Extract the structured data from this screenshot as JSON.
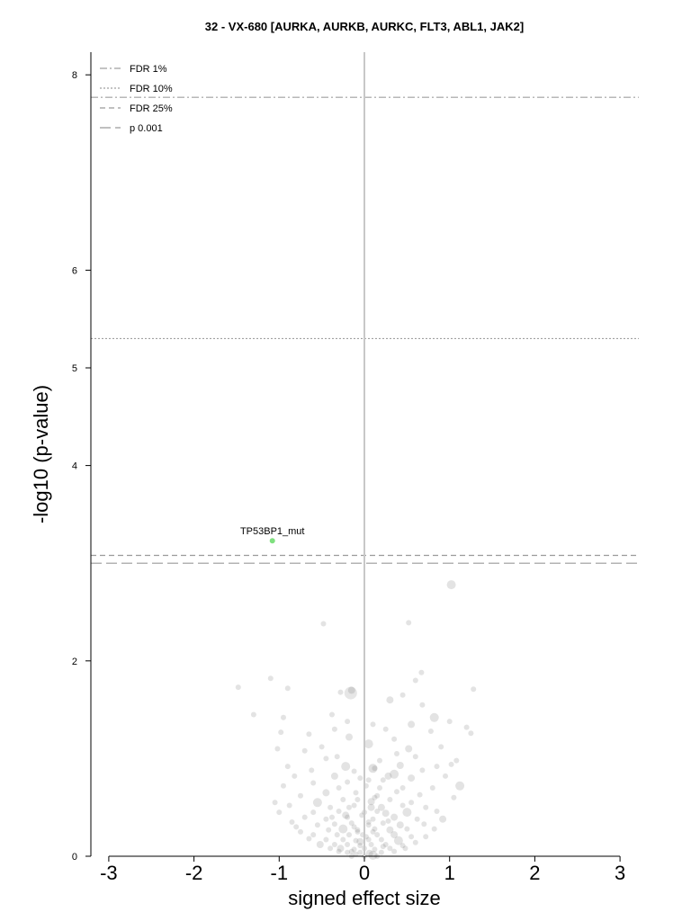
{
  "chart_data": {
    "type": "scatter",
    "title": "32 - VX-680 [AURKA, AURKB, AURKC, FLT3, ABL1, JAK2]",
    "xlabel": "signed effect size",
    "ylabel": "-log10 (p-value)",
    "xlim": [
      -3.2,
      3.2
    ],
    "ylim": [
      0,
      8.25
    ],
    "x_ticks": [
      "-3",
      "-2",
      "-1",
      "0",
      "1",
      "2",
      "3"
    ],
    "y_ticks": [
      "0",
      "2",
      "4",
      "5",
      "6",
      "8"
    ],
    "thresholds": [
      {
        "name": "FDR 1%",
        "y": 7.77,
        "style": "dashdot"
      },
      {
        "name": "FDR 10%",
        "y": 5.3,
        "style": "dotted"
      },
      {
        "name": "FDR 25%",
        "y": 3.08,
        "style": "dashed"
      },
      {
        "name": "p 0.001",
        "y": 3.0,
        "style": "longdash"
      }
    ],
    "legend": {
      "placement": "top-left",
      "entries": [
        "FDR 1%",
        "FDR 10%",
        "FDR 25%",
        "p 0.001"
      ]
    },
    "highlight": {
      "label": "TP53BP1_mut",
      "x": -1.08,
      "y": 3.23,
      "color": "#7fe07f"
    },
    "points": [
      [
        1.02,
        2.78
      ],
      [
        0.52,
        2.39
      ],
      [
        -0.48,
        2.38
      ],
      [
        -1.48,
        1.73
      ],
      [
        -1.1,
        1.82
      ],
      [
        -0.9,
        1.72
      ],
      [
        -0.28,
        1.68
      ],
      [
        -0.15,
        1.7
      ],
      [
        0.67,
        1.88
      ],
      [
        0.6,
        1.8
      ],
      [
        1.28,
        1.71
      ],
      [
        0.45,
        1.65
      ],
      [
        -1.3,
        1.45
      ],
      [
        0.68,
        1.55
      ],
      [
        0.3,
        1.6
      ],
      [
        -0.38,
        1.45
      ],
      [
        -0.95,
        1.42
      ],
      [
        0.82,
        1.42
      ],
      [
        -0.2,
        1.38
      ],
      [
        -0.35,
        1.3
      ],
      [
        0.1,
        1.35
      ],
      [
        0.55,
        1.35
      ],
      [
        1.0,
        1.38
      ],
      [
        1.2,
        1.32
      ],
      [
        -0.98,
        1.27
      ],
      [
        -0.65,
        1.25
      ],
      [
        0.25,
        1.3
      ],
      [
        0.78,
        1.28
      ],
      [
        -0.18,
        1.22
      ],
      [
        0.35,
        1.2
      ],
      [
        1.25,
        1.26
      ],
      [
        -1.02,
        1.1
      ],
      [
        -0.7,
        1.08
      ],
      [
        -0.5,
        1.12
      ],
      [
        0.05,
        1.15
      ],
      [
        0.52,
        1.1
      ],
      [
        0.9,
        1.12
      ],
      [
        -0.45,
        1.0
      ],
      [
        0.18,
        0.98
      ],
      [
        0.6,
        1.02
      ],
      [
        1.08,
        0.98
      ],
      [
        -0.9,
        0.92
      ],
      [
        0.42,
        0.93
      ],
      [
        0.85,
        0.92
      ],
      [
        1.02,
        0.94
      ],
      [
        -0.62,
        0.88
      ],
      [
        -0.12,
        0.87
      ],
      [
        0.12,
        0.9
      ],
      [
        0.68,
        0.88
      ],
      [
        -0.35,
        0.82
      ],
      [
        -0.05,
        0.8
      ],
      [
        0.35,
        0.84
      ],
      [
        0.95,
        0.82
      ],
      [
        -0.6,
        0.75
      ],
      [
        -0.2,
        0.76
      ],
      [
        0.22,
        0.78
      ],
      [
        0.55,
        0.8
      ],
      [
        -0.95,
        0.72
      ],
      [
        -0.3,
        0.7
      ],
      [
        0.02,
        0.72
      ],
      [
        0.45,
        0.7
      ],
      [
        0.8,
        0.7
      ],
      [
        -0.75,
        0.62
      ],
      [
        -0.45,
        0.65
      ],
      [
        -0.1,
        0.65
      ],
      [
        0.15,
        0.62
      ],
      [
        0.38,
        0.66
      ],
      [
        0.65,
        0.63
      ],
      [
        -0.55,
        0.55
      ],
      [
        -0.25,
        0.58
      ],
      [
        0.08,
        0.56
      ],
      [
        0.3,
        0.58
      ],
      [
        0.55,
        0.55
      ],
      [
        1.05,
        0.6
      ],
      [
        -0.88,
        0.52
      ],
      [
        -0.4,
        0.5
      ],
      [
        -0.12,
        0.52
      ],
      [
        0.2,
        0.5
      ],
      [
        0.45,
        0.52
      ],
      [
        0.72,
        0.5
      ],
      [
        -1.0,
        0.45
      ],
      [
        -0.6,
        0.45
      ],
      [
        -0.3,
        0.46
      ],
      [
        0.0,
        0.45
      ],
      [
        0.25,
        0.44
      ],
      [
        0.5,
        0.45
      ],
      [
        0.85,
        0.46
      ],
      [
        -0.7,
        0.4
      ],
      [
        -0.45,
        0.38
      ],
      [
        -0.2,
        0.4
      ],
      [
        0.1,
        0.38
      ],
      [
        0.35,
        0.4
      ],
      [
        0.62,
        0.38
      ],
      [
        -0.55,
        0.32
      ],
      [
        -0.35,
        0.33
      ],
      [
        -0.15,
        0.34
      ],
      [
        0.05,
        0.32
      ],
      [
        0.22,
        0.34
      ],
      [
        0.42,
        0.32
      ],
      [
        0.7,
        0.33
      ],
      [
        -0.8,
        0.3
      ],
      [
        -0.42,
        0.27
      ],
      [
        -0.25,
        0.28
      ],
      [
        -0.08,
        0.27
      ],
      [
        0.12,
        0.28
      ],
      [
        0.3,
        0.27
      ],
      [
        0.5,
        0.28
      ],
      [
        -0.6,
        0.22
      ],
      [
        -0.32,
        0.22
      ],
      [
        -0.18,
        0.22
      ],
      [
        -0.02,
        0.22
      ],
      [
        0.15,
        0.22
      ],
      [
        0.35,
        0.22
      ],
      [
        0.55,
        0.2
      ],
      [
        -0.45,
        0.17
      ],
      [
        -0.25,
        0.17
      ],
      [
        -0.1,
        0.16
      ],
      [
        0.05,
        0.17
      ],
      [
        0.2,
        0.17
      ],
      [
        0.4,
        0.16
      ],
      [
        -0.35,
        0.12
      ],
      [
        -0.2,
        0.12
      ],
      [
        -0.05,
        0.11
      ],
      [
        0.08,
        0.12
      ],
      [
        0.25,
        0.12
      ],
      [
        0.45,
        0.11
      ],
      [
        -0.28,
        0.08
      ],
      [
        -0.12,
        0.07
      ],
      [
        0.0,
        0.08
      ],
      [
        0.12,
        0.07
      ],
      [
        0.3,
        0.08
      ],
      [
        -0.2,
        0.04
      ],
      [
        -0.05,
        0.04
      ],
      [
        0.06,
        0.03
      ],
      [
        0.2,
        0.04
      ],
      [
        -0.1,
        0.02
      ],
      [
        0.1,
        0.01
      ],
      [
        -0.15,
        0.0
      ],
      [
        0.0,
        0.0
      ],
      [
        0.15,
        0.0
      ],
      [
        -0.05,
        0.15
      ],
      [
        0.02,
        0.2
      ],
      [
        -0.08,
        0.25
      ],
      [
        0.1,
        0.25
      ],
      [
        -0.12,
        0.3
      ],
      [
        0.05,
        0.35
      ],
      [
        -0.03,
        0.42
      ],
      [
        0.08,
        0.5
      ],
      [
        -0.18,
        0.5
      ],
      [
        0.12,
        0.6
      ],
      [
        -0.08,
        0.58
      ],
      [
        0.18,
        0.7
      ],
      [
        0.05,
        0.78
      ],
      [
        -0.22,
        0.92
      ],
      [
        0.28,
        0.82
      ],
      [
        -0.15,
        0.05
      ],
      [
        0.22,
        0.1
      ],
      [
        -0.3,
        0.05
      ],
      [
        0.35,
        0.05
      ],
      [
        -0.4,
        0.08
      ],
      [
        0.48,
        0.08
      ],
      [
        -0.52,
        0.12
      ],
      [
        0.6,
        0.14
      ],
      [
        -0.65,
        0.18
      ],
      [
        0.72,
        0.2
      ],
      [
        -0.75,
        0.25
      ],
      [
        0.82,
        0.28
      ],
      [
        -0.85,
        0.35
      ],
      [
        0.92,
        0.38
      ],
      [
        -1.05,
        0.55
      ],
      [
        1.12,
        0.72
      ],
      [
        -0.82,
        0.82
      ],
      [
        0.38,
        1.05
      ],
      [
        -0.32,
        1.02
      ],
      [
        0.15,
        0.46
      ],
      [
        -0.22,
        0.42
      ],
      [
        0.28,
        0.36
      ],
      [
        -0.38,
        0.4
      ]
    ]
  }
}
